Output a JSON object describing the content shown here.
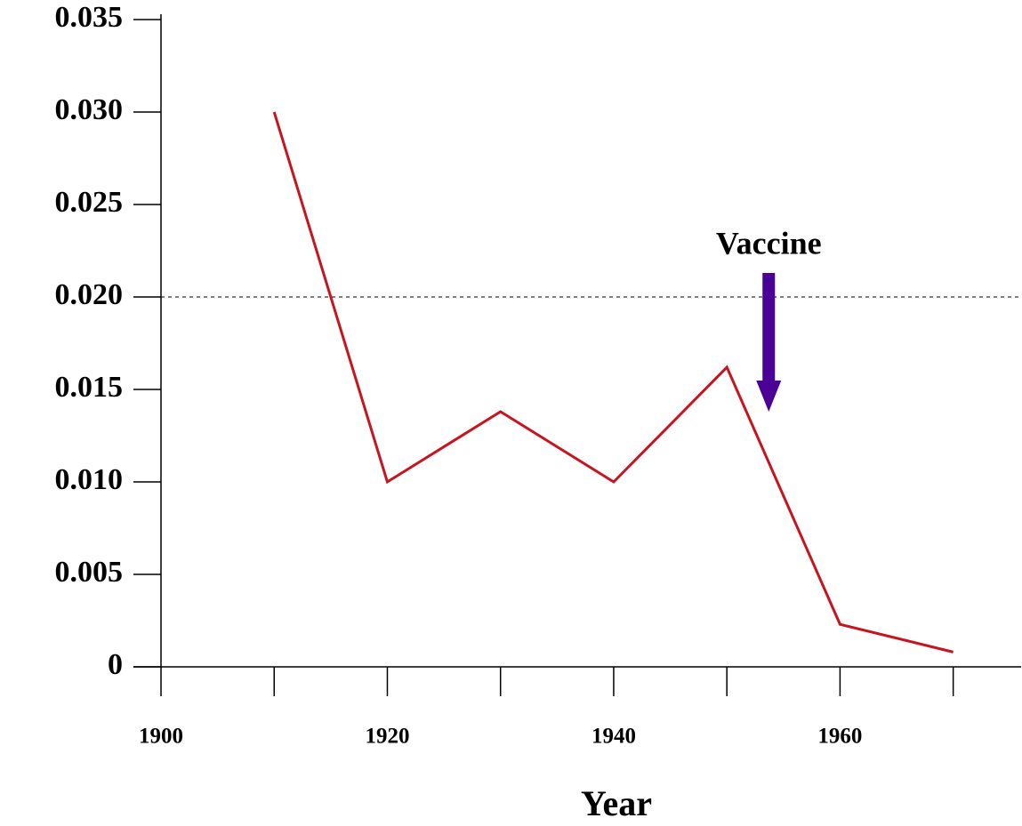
{
  "chart_data": {
    "type": "line",
    "x_label": "Year",
    "x": [
      1910,
      1920,
      1930,
      1940,
      1950,
      1960,
      1970
    ],
    "series": [
      {
        "color": "#c8141e",
        "values": [
          0.03,
          0.01,
          0.0138,
          0.01,
          0.0162,
          0.0023,
          0.0008
        ]
      }
    ],
    "xlim": [
      1900,
      1976
    ],
    "xticks": [
      1900,
      1920,
      1940,
      1960
    ],
    "xminor": [
      1910,
      1930,
      1950,
      1970
    ],
    "ylim": [
      0,
      0.035
    ],
    "yticks": [
      0,
      0.005,
      {
        "value": 0.01,
        "label": "0.010"
      },
      0.015,
      {
        "value": 0.02,
        "label": "0.020"
      },
      0.025,
      {
        "value": 0.03,
        "label": "0.030"
      },
      0.035
    ],
    "reference_line": 0.02,
    "annotation": {
      "text": "Vaccine",
      "x": 1953.7,
      "color": "#4b0096"
    }
  }
}
